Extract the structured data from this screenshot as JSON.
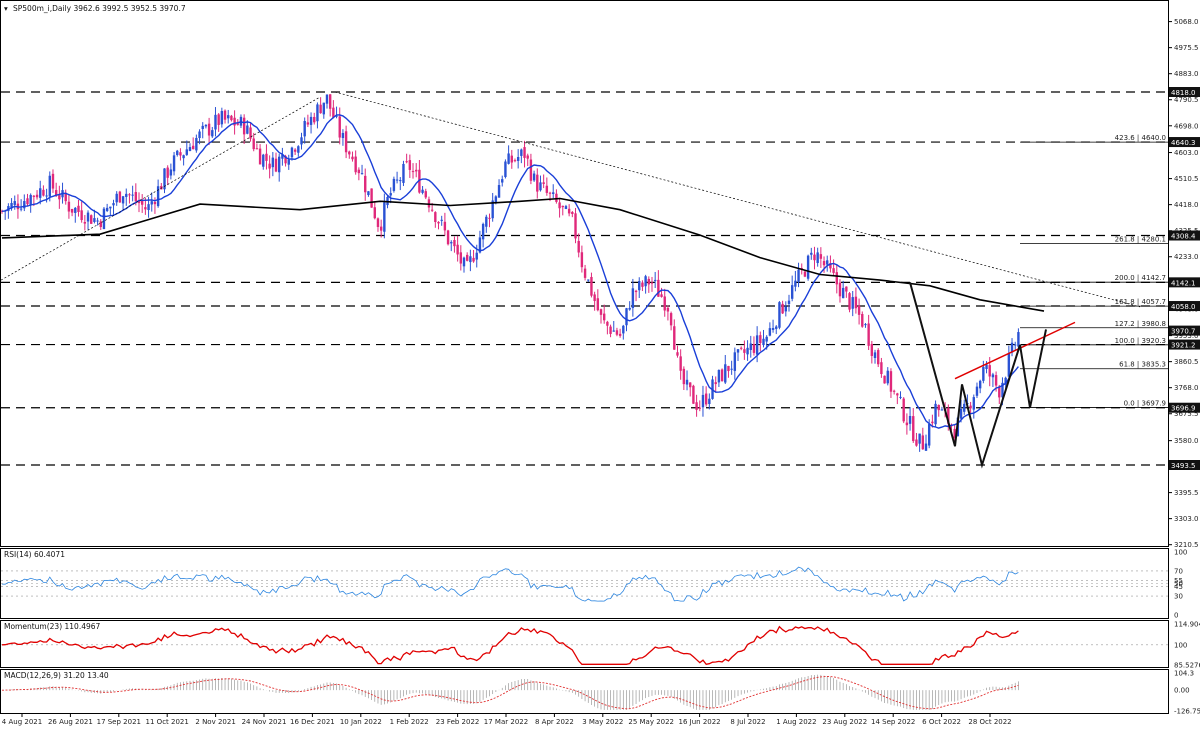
{
  "header": {
    "symbol_line": "SP500m_i,Daily  3962.6 3992.5 3952.5 3970.7"
  },
  "colors": {
    "up_candle": "#2a52d4",
    "down_candle": "#e0287a",
    "sma50": "#1a3fd8",
    "sma200": "#000000",
    "rsi": "#2d86e0",
    "momentum": "#e00000",
    "macd_signal": "#e03030",
    "hist": "#9a9a9a",
    "trend": "#e00000"
  },
  "chart_data": [
    {
      "type": "candlestick",
      "title": "SP500m_i,Daily  3962.6 3992.5 3952.5 3970.7",
      "x": [
        "4 Aug 2021",
        "26 Aug 2021",
        "17 Sep 2021",
        "11 Oct 2021",
        "2 Nov 2021",
        "24 Nov 2021",
        "16 Dec 2021",
        "10 Jan 2022",
        "1 Feb 2022",
        "23 Feb 2022",
        "17 Mar 2022",
        "8 Apr 2022",
        "3 May 2022",
        "25 May 2022",
        "16 Jun 2022",
        "8 Jul 2022",
        "1 Aug 2022",
        "23 Aug 2022",
        "14 Sep 2022",
        "6 Oct 2022",
        "28 Oct 2022"
      ],
      "close": [
        4420,
        4490,
        4360,
        4400,
        4650,
        4700,
        4620,
        4660,
        4520,
        4360,
        4520,
        4400,
        4160,
        4000,
        3680,
        3840,
        4120,
        4140,
        3760,
        3590,
        3960
      ],
      "ohlc_last": {
        "open": 3962.6,
        "high": 3992.5,
        "low": 3952.5,
        "close": 3970.7
      },
      "y_ticks": [
        "5068.0",
        "4975.5",
        "4883.0",
        "4790.5",
        "4698.0",
        "4603.0",
        "4510.5",
        "4418.0",
        "4325.5",
        "4233.0",
        "4140.5",
        "4048.0",
        "3953.0",
        "3860.5",
        "3768.0",
        "3675.5",
        "3580.0",
        "3488.0",
        "3395.5",
        "3303.0",
        "3210.5"
      ],
      "ylim": [
        3210.5,
        5115
      ],
      "levels": [
        {
          "value": 4818.0,
          "label": "4818.0"
        },
        {
          "value": 4640.3,
          "label": "4640.3"
        },
        {
          "value": 4308.4,
          "label": "4308.4"
        },
        {
          "value": 4142.1,
          "label": "4142.1"
        },
        {
          "value": 4058.0,
          "label": "4058.0"
        },
        {
          "value": 3921.2,
          "label": "3921.2"
        },
        {
          "value": 3696.9,
          "label": "3696.9"
        },
        {
          "value": 3493.5,
          "label": "3493.5"
        }
      ],
      "price_tag_current": "3970.7",
      "fibo": [
        {
          "label": "423.6 | 4640.0",
          "value": 4640.0
        },
        {
          "label": "261.8 | 4280.1",
          "value": 4280.1
        },
        {
          "label": "200.0 | 4142.7",
          "value": 4142.7
        },
        {
          "label": "161.8 | 4057.7",
          "value": 4057.7
        },
        {
          "label": "127.2 | 3980.8",
          "value": 3980.8
        },
        {
          "label": "100.0 | 3920.3",
          "value": 3920.3
        },
        {
          "label": "61.8 | 3835.3",
          "value": 3835.3
        },
        {
          "label": "0.0 | 3697.9",
          "value": 3697.9
        }
      ]
    },
    {
      "type": "line",
      "title": "RSI(14) 60.4071",
      "ylim": [
        0,
        100
      ],
      "y_ticks": [
        "100",
        "70",
        "55",
        "50",
        "45",
        "30",
        "0"
      ],
      "levels": [
        70,
        55,
        50,
        45,
        30
      ],
      "last": 60.4071
    },
    {
      "type": "line",
      "title": "Momentum(23) 110.4967",
      "ylim": [
        85.5276,
        114.904
      ],
      "y_ticks": [
        "114.904",
        "100",
        "85.5276"
      ],
      "levels": [
        100
      ],
      "last": 110.4967
    },
    {
      "type": "bar",
      "title": "MACD(12,26,9) 31.20 13.40",
      "ylim": [
        -126.75,
        104.3
      ],
      "y_ticks": [
        "104.3",
        "0.00",
        "-126.75"
      ],
      "macd": 31.2,
      "signal": 13.4
    }
  ]
}
